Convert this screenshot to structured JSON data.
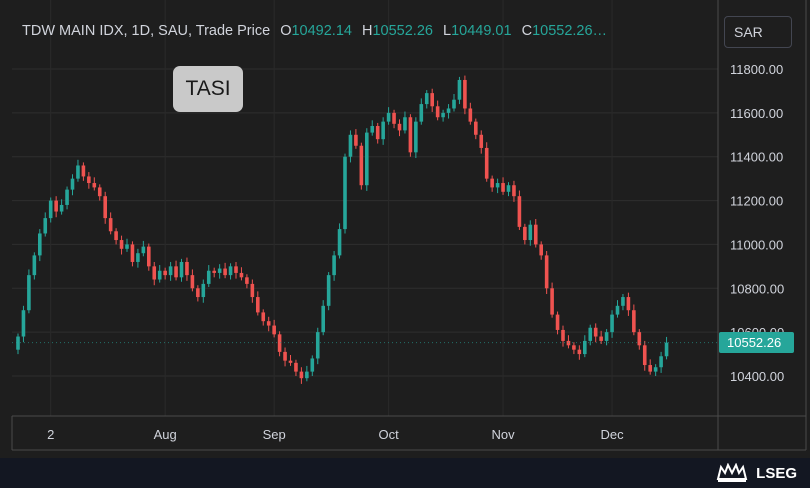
{
  "header": {
    "symbol": "TDW MAIN IDX, 1D, SAU, Trade Price",
    "open_label": "O",
    "open_value": "10492.14",
    "high_label": "H",
    "high_value": "10552.26",
    "low_label": "L",
    "low_value": "10449.01",
    "close_label": "C",
    "close_value": "10552.26…"
  },
  "currency_button": "SAR",
  "badge": "TASI",
  "last_price_tag": "10552.26",
  "brand": "LSEG",
  "colors": {
    "up": "#26a69a",
    "down": "#ef5350",
    "background": "#1e1e1e",
    "axis_text": "#d1d4dc"
  },
  "chart_data": {
    "type": "candlestick",
    "xlabel": "",
    "ylabel": "",
    "ylim": [
      10300,
      11900
    ],
    "grid": true,
    "y_ticks": [
      10400,
      10600,
      10800,
      11000,
      11200,
      11400,
      11600,
      11800
    ],
    "y_tick_labels": [
      "10400.00",
      "10600.00",
      "10800.00",
      "11000.00",
      "11200.00",
      "11400.00",
      "11600.00",
      "11800.00"
    ],
    "x_tick_labels": [
      "2",
      "Aug",
      "Sep",
      "Oct",
      "Nov",
      "Dec"
    ],
    "x_tick_positions": [
      6,
      27,
      47,
      68,
      89,
      109
    ],
    "x_range": [
      0,
      129
    ],
    "closes": [
      10580,
      10700,
      10860,
      10950,
      11050,
      11120,
      11200,
      11150,
      11180,
      11250,
      11300,
      11360,
      11310,
      11280,
      11260,
      11220,
      11120,
      11060,
      11020,
      10980,
      11000,
      10920,
      10960,
      10990,
      10900,
      10840,
      10880,
      10860,
      10900,
      10850,
      10920,
      10860,
      10800,
      10760,
      10820,
      10880,
      10870,
      10890,
      10860,
      10900,
      10870,
      10850,
      10820,
      10760,
      10690,
      10650,
      10630,
      10590,
      10510,
      10470,
      10460,
      10420,
      10390,
      10420,
      10480,
      10600,
      10720,
      10860,
      10950,
      11070,
      11400,
      11500,
      11450,
      11270,
      11510,
      11540,
      11480,
      11560,
      11600,
      11550,
      11520,
      11580,
      11420,
      11560,
      11640,
      11690,
      11630,
      11580,
      11600,
      11620,
      11660,
      11750,
      11620,
      11560,
      11500,
      11440,
      11300,
      11260,
      11280,
      11240,
      11270,
      11220,
      11080,
      11020,
      11090,
      11000,
      10950,
      10800,
      10680,
      10610,
      10560,
      10540,
      10520,
      10500,
      10560,
      10620,
      10580,
      10560,
      10600,
      10680,
      10720,
      10760,
      10700,
      10600,
      10540,
      10450,
      10420,
      10440,
      10490,
      10552.26
    ]
  }
}
